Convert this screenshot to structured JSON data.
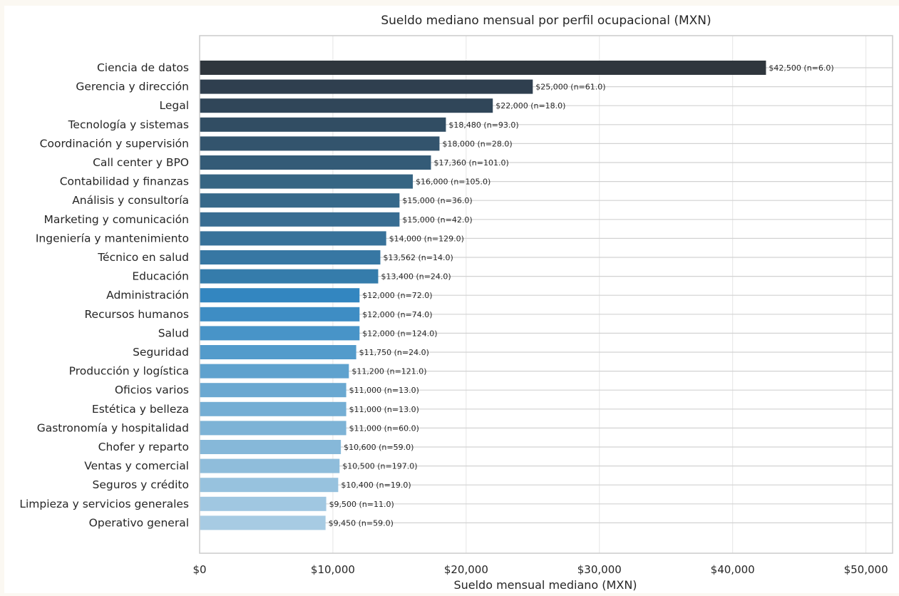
{
  "chart_data": {
    "type": "bar",
    "orientation": "horizontal",
    "title": "Sueldo mediano mensual por perfil ocupacional (MXN)",
    "xlabel": "Sueldo mensual mediano (MXN)",
    "ylabel": "",
    "xlim": [
      0,
      52000
    ],
    "x_ticks": [
      0,
      10000,
      20000,
      30000,
      40000,
      50000
    ],
    "x_tick_labels": [
      "$0",
      "$10,000",
      "$20,000",
      "$30,000",
      "$40,000",
      "$50,000"
    ],
    "grid": true,
    "categories": [
      "Ciencia de datos",
      "Gerencia y dirección",
      "Legal",
      "Tecnología y sistemas",
      "Coordinación y supervisión",
      "Call center y BPO",
      "Contabilidad y finanzas",
      "Análisis y consultoría",
      "Marketing y comunicación",
      "Ingeniería y mantenimiento",
      "Técnico en salud",
      "Educación",
      "Administración",
      "Recursos humanos",
      "Salud",
      "Seguridad",
      "Producción y logística",
      "Oficios varios",
      "Estética y belleza",
      "Gastronomía y hospitalidad",
      "Chofer y reparto",
      "Ventas y comercial",
      "Seguros y crédito",
      "Limpieza y servicios generales",
      "Operativo general"
    ],
    "values": [
      42500,
      25000,
      22000,
      18480,
      18000,
      17360,
      16000,
      15000,
      15000,
      14000,
      13562,
      13400,
      12000,
      12000,
      12000,
      11750,
      11200,
      11000,
      11000,
      11000,
      10600,
      10500,
      10400,
      9500,
      9450
    ],
    "data_labels": [
      "$42,500  (n=6.0)",
      "$25,000  (n=61.0)",
      "$22,000  (n=18.0)",
      "$18,480  (n=93.0)",
      "$18,000  (n=28.0)",
      "$17,360  (n=101.0)",
      "$16,000  (n=105.0)",
      "$15,000  (n=36.0)",
      "$15,000  (n=42.0)",
      "$14,000  (n=129.0)",
      "$13,562  (n=14.0)",
      "$13,400  (n=24.0)",
      "$12,000  (n=72.0)",
      "$12,000  (n=74.0)",
      "$12,000  (n=124.0)",
      "$11,750  (n=24.0)",
      "$11,200  (n=121.0)",
      "$11,000  (n=13.0)",
      "$11,000  (n=13.0)",
      "$11,000  (n=60.0)",
      "$10,600  (n=59.0)",
      "$10,500  (n=197.0)",
      "$10,400  (n=19.0)",
      "$9,500  (n=11.0)",
      "$9,450  (n=59.0)"
    ],
    "colors": [
      "#2f363d",
      "#2f3f4f",
      "#304659",
      "#314d63",
      "#33546d",
      "#345b77",
      "#366583",
      "#37698a",
      "#386d92",
      "#38729a",
      "#3777a3",
      "#357cab",
      "#3386c0",
      "#3e8dc4",
      "#4894c8",
      "#539bcb",
      "#5fa2ce",
      "#6aa8d1",
      "#74aed4",
      "#7db3d6",
      "#86b8d9",
      "#8fbddb",
      "#97c2de",
      "#a0c7e1",
      "#a7cbe3"
    ]
  }
}
